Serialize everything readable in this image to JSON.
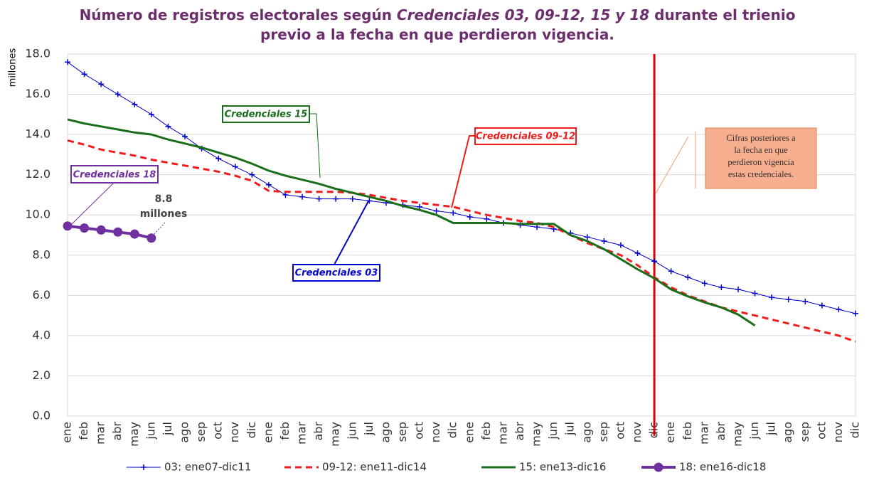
{
  "chart_data": {
    "type": "line",
    "title_parts": [
      "Número de registros electorales según ",
      "Credenciales 03, 09-12, 15 y 18",
      " durante el trienio",
      "previo a la fecha en que perdieron vigencia."
    ],
    "y_label": "millones",
    "categories": [
      "ene",
      "feb",
      "mar",
      "abr",
      "may",
      "jun",
      "jul",
      "ago",
      "sep",
      "oct",
      "nov",
      "dic",
      "ene",
      "feb",
      "mar",
      "abr",
      "may",
      "jun",
      "jul",
      "ago",
      "sep",
      "oct",
      "nov",
      "dic",
      "ene",
      "feb",
      "mar",
      "abr",
      "may",
      "jun",
      "jul",
      "ago",
      "sep",
      "oct",
      "nov",
      "dic",
      "ene",
      "feb",
      "mar",
      "abr",
      "may",
      "jun",
      "jul",
      "ago",
      "sep",
      "oct",
      "nov",
      "dic"
    ],
    "ylim": [
      0,
      18
    ],
    "yticks": [
      {
        "value": 0,
        "label": "0.0"
      },
      {
        "value": 2,
        "label": "2.0"
      },
      {
        "value": 4,
        "label": "4.0"
      },
      {
        "value": 6,
        "label": "6.0"
      },
      {
        "value": 8,
        "label": "8.0"
      },
      {
        "value": 10,
        "label": "10.0"
      },
      {
        "value": 12,
        "label": "12.0"
      },
      {
        "value": 14,
        "label": "14.0"
      },
      {
        "value": 16,
        "label": "16.0"
      },
      {
        "value": 18,
        "label": "18.0"
      }
    ],
    "grid": true,
    "legend": "bottom",
    "series": [
      {
        "name": "03: ene07-dic11",
        "color": "#0000cc",
        "dash": false,
        "width": 1,
        "marker": "plus",
        "values": [
          17.6,
          17.0,
          16.5,
          16.0,
          15.5,
          15.0,
          14.4,
          13.9,
          13.3,
          12.8,
          12.4,
          12.0,
          11.5,
          11.0,
          10.9,
          10.8,
          10.8,
          10.8,
          10.7,
          10.6,
          10.5,
          10.4,
          10.2,
          10.1,
          9.9,
          9.8,
          9.6,
          9.5,
          9.4,
          9.3,
          9.1,
          8.9,
          8.7,
          8.5,
          8.1,
          7.7,
          7.2,
          6.9,
          6.6,
          6.4,
          6.3,
          6.1,
          5.9,
          5.8,
          5.7,
          5.5,
          5.3,
          5.1
        ]
      },
      {
        "name": "09-12: ene11-dic14",
        "color": "#ee1c1c",
        "dash": true,
        "width": 3,
        "marker": "none",
        "values": [
          13.7,
          13.5,
          13.25,
          13.1,
          12.95,
          12.75,
          12.6,
          12.45,
          12.3,
          12.15,
          11.95,
          11.7,
          11.2,
          11.15,
          11.15,
          11.15,
          11.15,
          11.1,
          11.0,
          10.85,
          10.7,
          10.6,
          10.5,
          10.4,
          10.2,
          10.0,
          9.85,
          9.7,
          9.6,
          9.4,
          9.0,
          8.6,
          8.3,
          8.0,
          7.5,
          6.9,
          6.4,
          6.0,
          5.7,
          5.4,
          5.2,
          5.0,
          4.8,
          4.6,
          4.4,
          4.2,
          4.0,
          3.7
        ]
      },
      {
        "name": "15: ene13-dic16",
        "color": "#1a6e1a",
        "dash": false,
        "width": 3,
        "marker": "none",
        "values": [
          14.75,
          14.55,
          14.4,
          14.25,
          14.1,
          14.0,
          13.75,
          13.55,
          13.35,
          13.1,
          12.85,
          12.55,
          12.2,
          11.95,
          11.75,
          11.55,
          11.3,
          11.1,
          10.9,
          10.7,
          10.45,
          10.25,
          10.0,
          9.6,
          9.6,
          9.6,
          9.6,
          9.55,
          9.55,
          9.55,
          9.0,
          8.7,
          8.3,
          7.8,
          7.3,
          6.85,
          6.3,
          5.95,
          5.65,
          5.4,
          5.05,
          4.5,
          null,
          null,
          null,
          null,
          null,
          null
        ]
      },
      {
        "name": "18: ene16-dic18",
        "color": "#7030a0",
        "dash": false,
        "width": 4,
        "marker": "circle",
        "values": [
          9.45,
          9.35,
          9.25,
          9.15,
          9.05,
          8.85,
          null,
          null,
          null,
          null,
          null,
          null,
          null,
          null,
          null,
          null,
          null,
          null,
          null,
          null,
          null,
          null,
          null,
          null,
          null,
          null,
          null,
          null,
          null,
          null,
          null,
          null,
          null,
          null,
          null,
          null,
          null,
          null,
          null,
          null,
          null,
          null,
          null,
          null,
          null,
          null,
          null,
          null
        ]
      }
    ],
    "reference_line": {
      "category_index": 35,
      "color": "#e00000"
    },
    "annotations": {
      "c15": "Credenciales 15",
      "c0912": "Credenciales 09-12",
      "c18": "Credenciales 18",
      "c03": "Credenciales 03",
      "last": [
        "8.8",
        "millones"
      ],
      "note": [
        "Cifras posteriores a",
        "la fecha en que",
        "perdieron vigencia",
        "estas credenciales."
      ]
    }
  }
}
